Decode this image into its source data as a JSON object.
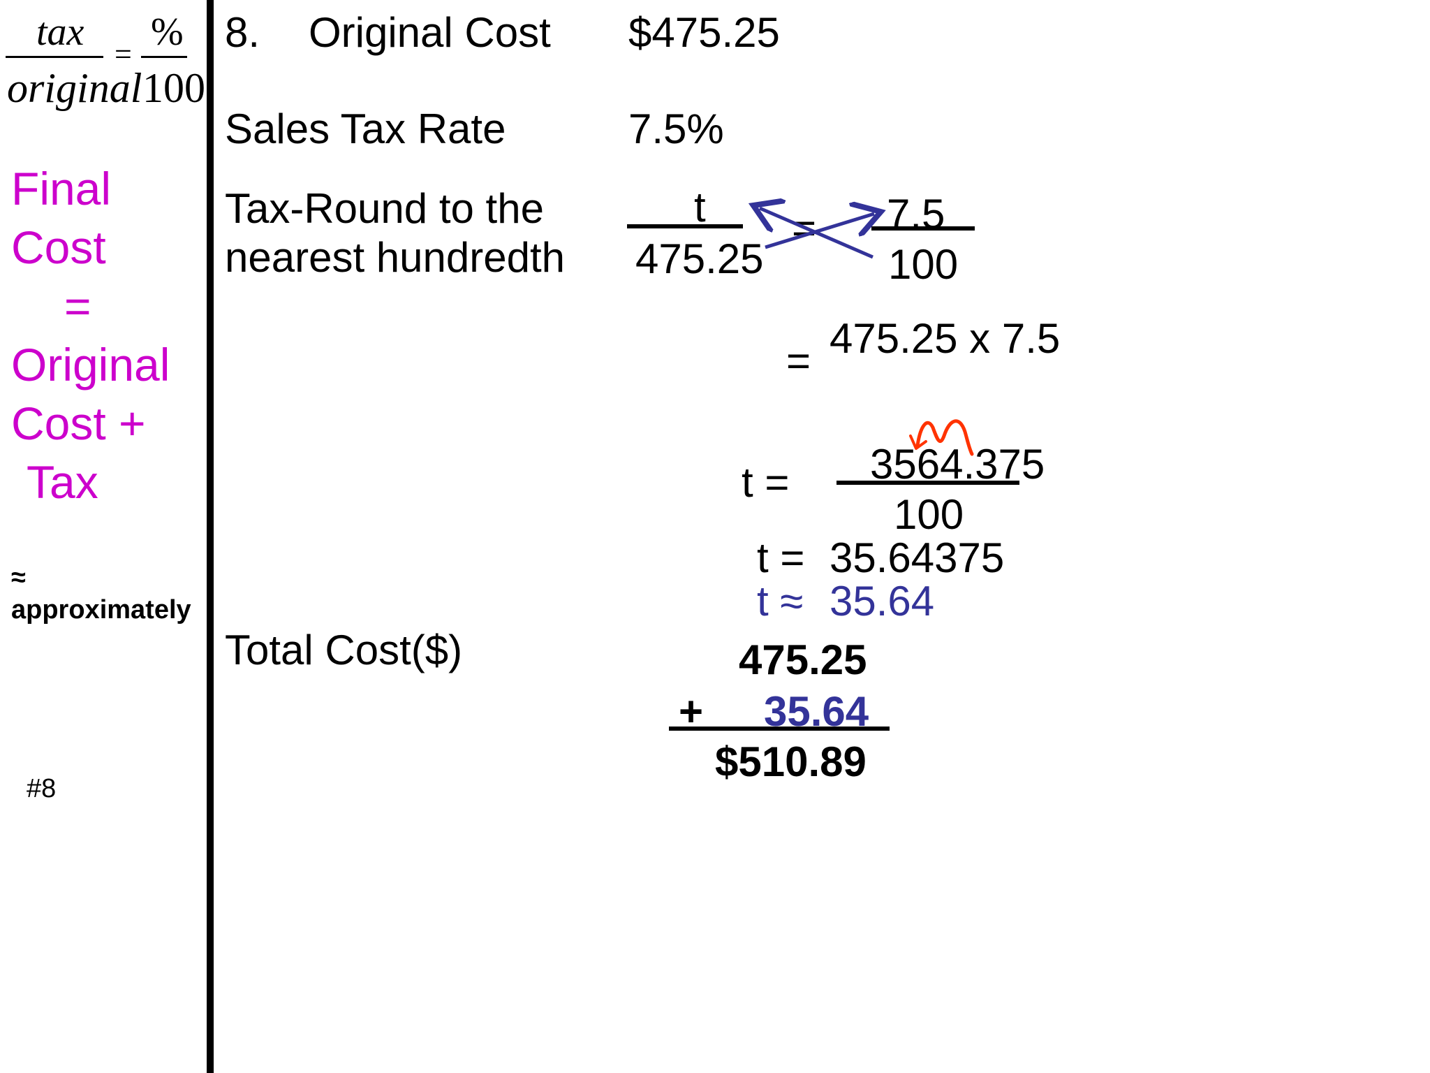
{
  "formula": {
    "numerator_left": "tax",
    "denominator_left": "original",
    "equals": "=",
    "numerator_right": "%",
    "denominator_right": "100"
  },
  "sidebar": {
    "final_cost_lines": [
      "Final",
      "Cost",
      "=",
      "Original",
      "Cost +",
      "Tax"
    ],
    "approx_symbol": "≈",
    "approx_word": "approximately",
    "slide_number": "#8"
  },
  "problem": {
    "number": "8.",
    "original_cost_label": "Original Cost",
    "original_cost_value": "$475.25",
    "tax_rate_label": "Sales Tax Rate",
    "tax_rate_value": "7.5%",
    "tax_round_label_line1": "Tax-Round to the",
    "tax_round_label_line2": "nearest hundredth",
    "total_cost_label": "Total Cost($)"
  },
  "work": {
    "proportion": {
      "left_num": "t",
      "left_den": "475.25",
      "equals": "=",
      "right_num": "7.5",
      "right_den": "100"
    },
    "cross_multiply_equals": "=",
    "cross_multiply_expr": "475.25 x 7.5",
    "t_fraction_label": "t  =",
    "t_fraction_num": "3564.375",
    "t_fraction_den": "100",
    "t_exact_label": "t =",
    "t_exact_value": "35.64375",
    "t_approx_label": "t ≈",
    "t_approx_value": "35.64",
    "sum_addend1": "475.25",
    "sum_plus": "+",
    "sum_addend2": "35.64",
    "sum_total": "$510.89"
  },
  "colors": {
    "magenta": "#cc00cc",
    "navy": "#333399",
    "arrow": "#333399",
    "scribble": "#ff3300"
  }
}
